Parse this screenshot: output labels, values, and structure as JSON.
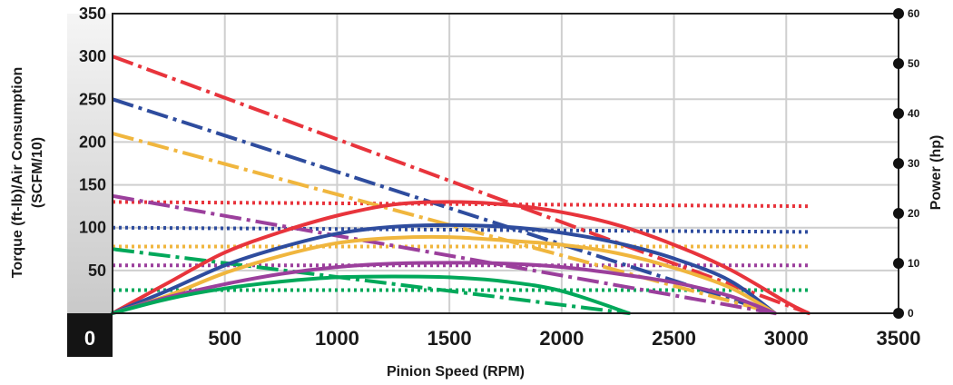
{
  "chart_data": {
    "type": "line",
    "xlabel": "Pinion Speed (RPM)",
    "ylabel_line1": "Torque (ft-lb)/Air Consumption",
    "ylabel_line2": "(SCFM/10)",
    "y2label": "Power (hp)",
    "xlim": [
      0,
      3500
    ],
    "ylim": [
      0,
      350
    ],
    "y2lim": [
      0,
      60
    ],
    "x_ticks": [
      "0",
      "500",
      "1000",
      "1500",
      "2000",
      "2500",
      "3000",
      "3500"
    ],
    "y_ticks": [
      "50",
      "100",
      "150",
      "200",
      "250",
      "300",
      "350"
    ],
    "y2_ticks": [
      "0",
      "10",
      "20",
      "30",
      "40",
      "50",
      "60"
    ],
    "grid": true,
    "colors": {
      "red": "#e8343c",
      "blue": "#2e4c9e",
      "yellow": "#f0b63e",
      "purple": "#9b3f9c",
      "green": "#00a85a"
    },
    "power_curves": [
      {
        "color": "red",
        "x": [
          0,
          250,
          500,
          750,
          1000,
          1250,
          1500,
          1750,
          2000,
          2250,
          2500,
          2750,
          3000,
          3100
        ],
        "y": [
          0,
          36,
          71,
          95,
          114,
          127,
          130,
          127,
          118,
          103,
          80,
          51,
          13,
          0
        ]
      },
      {
        "color": "blue",
        "x": [
          0,
          250,
          500,
          750,
          1000,
          1250,
          1500,
          1750,
          2000,
          2250,
          2500,
          2750,
          2950
        ],
        "y": [
          0,
          27,
          56,
          77,
          93,
          101,
          103,
          101,
          94,
          82,
          64,
          38,
          0
        ]
      },
      {
        "color": "yellow",
        "x": [
          0,
          250,
          500,
          750,
          1000,
          1250,
          1500,
          1750,
          2000,
          2250,
          2500,
          2750,
          2950
        ],
        "y": [
          0,
          21,
          47,
          67,
          82,
          88,
          89,
          85,
          80,
          70,
          53,
          30,
          0
        ]
      },
      {
        "color": "purple",
        "x": [
          0,
          250,
          500,
          750,
          1000,
          1250,
          1500,
          1750,
          2000,
          2250,
          2500,
          2750,
          2950
        ],
        "y": [
          0,
          19,
          34,
          46,
          54,
          58,
          59,
          58,
          54,
          46,
          36,
          20,
          0
        ]
      },
      {
        "color": "green",
        "x": [
          0,
          250,
          500,
          750,
          1000,
          1250,
          1500,
          1750,
          2000,
          2300
        ],
        "y": [
          0,
          17,
          29,
          37,
          42,
          43,
          42,
          37,
          26,
          0
        ]
      }
    ],
    "torque_lines": [
      {
        "color": "red",
        "x": [
          0,
          3100
        ],
        "y": [
          300,
          0
        ]
      },
      {
        "color": "blue",
        "x": [
          0,
          2950
        ],
        "y": [
          250,
          0
        ]
      },
      {
        "color": "yellow",
        "x": [
          0,
          2950
        ],
        "y": [
          210,
          0
        ]
      },
      {
        "color": "purple",
        "x": [
          0,
          2950
        ],
        "y": [
          137,
          0
        ]
      },
      {
        "color": "green",
        "x": [
          0,
          2300
        ],
        "y": [
          75,
          0
        ]
      }
    ],
    "air_lines": [
      {
        "color": "red",
        "x": [
          0,
          3100
        ],
        "y": [
          130,
          125
        ]
      },
      {
        "color": "blue",
        "x": [
          0,
          3100
        ],
        "y": [
          100,
          95
        ]
      },
      {
        "color": "yellow",
        "x": [
          0,
          3100
        ],
        "y": [
          78,
          78
        ]
      },
      {
        "color": "purple",
        "x": [
          0,
          3100
        ],
        "y": [
          56,
          56
        ]
      },
      {
        "color": "green",
        "x": [
          0,
          3100
        ],
        "y": [
          27,
          27
        ]
      }
    ]
  }
}
